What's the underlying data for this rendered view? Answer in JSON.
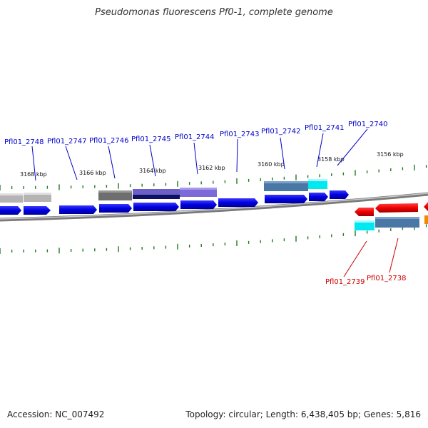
{
  "title": "Pseudomonas fluorescens Pf0-1, complete genome",
  "footer": {
    "accession": "Accession: NC_007492",
    "summary": "Topology: circular; Length: 6,438,405 bp; Genes: 5,816"
  },
  "colors": {
    "forward_label": "#0000cc",
    "reverse_label": "#cc0000",
    "tick": "#1e7a1e",
    "backbone": "#7a7a7a"
  },
  "scale_labels": [
    "3168 kbp",
    "3166 kbp",
    "3164 kbp",
    "3162 kbp",
    "3160 kbp",
    "3158 kbp",
    "3156 kbp"
  ],
  "forward_gene_labels": [
    "Pfl01_2748",
    "Pfl01_2747",
    "Pfl01_2746",
    "Pfl01_2745",
    "Pfl01_2744",
    "Pfl01_2743",
    "Pfl01_2742",
    "Pfl01_2741",
    "Pfl01_2740"
  ],
  "reverse_gene_labels": [
    "Pfl01_2739",
    "Pfl01_2738"
  ]
}
